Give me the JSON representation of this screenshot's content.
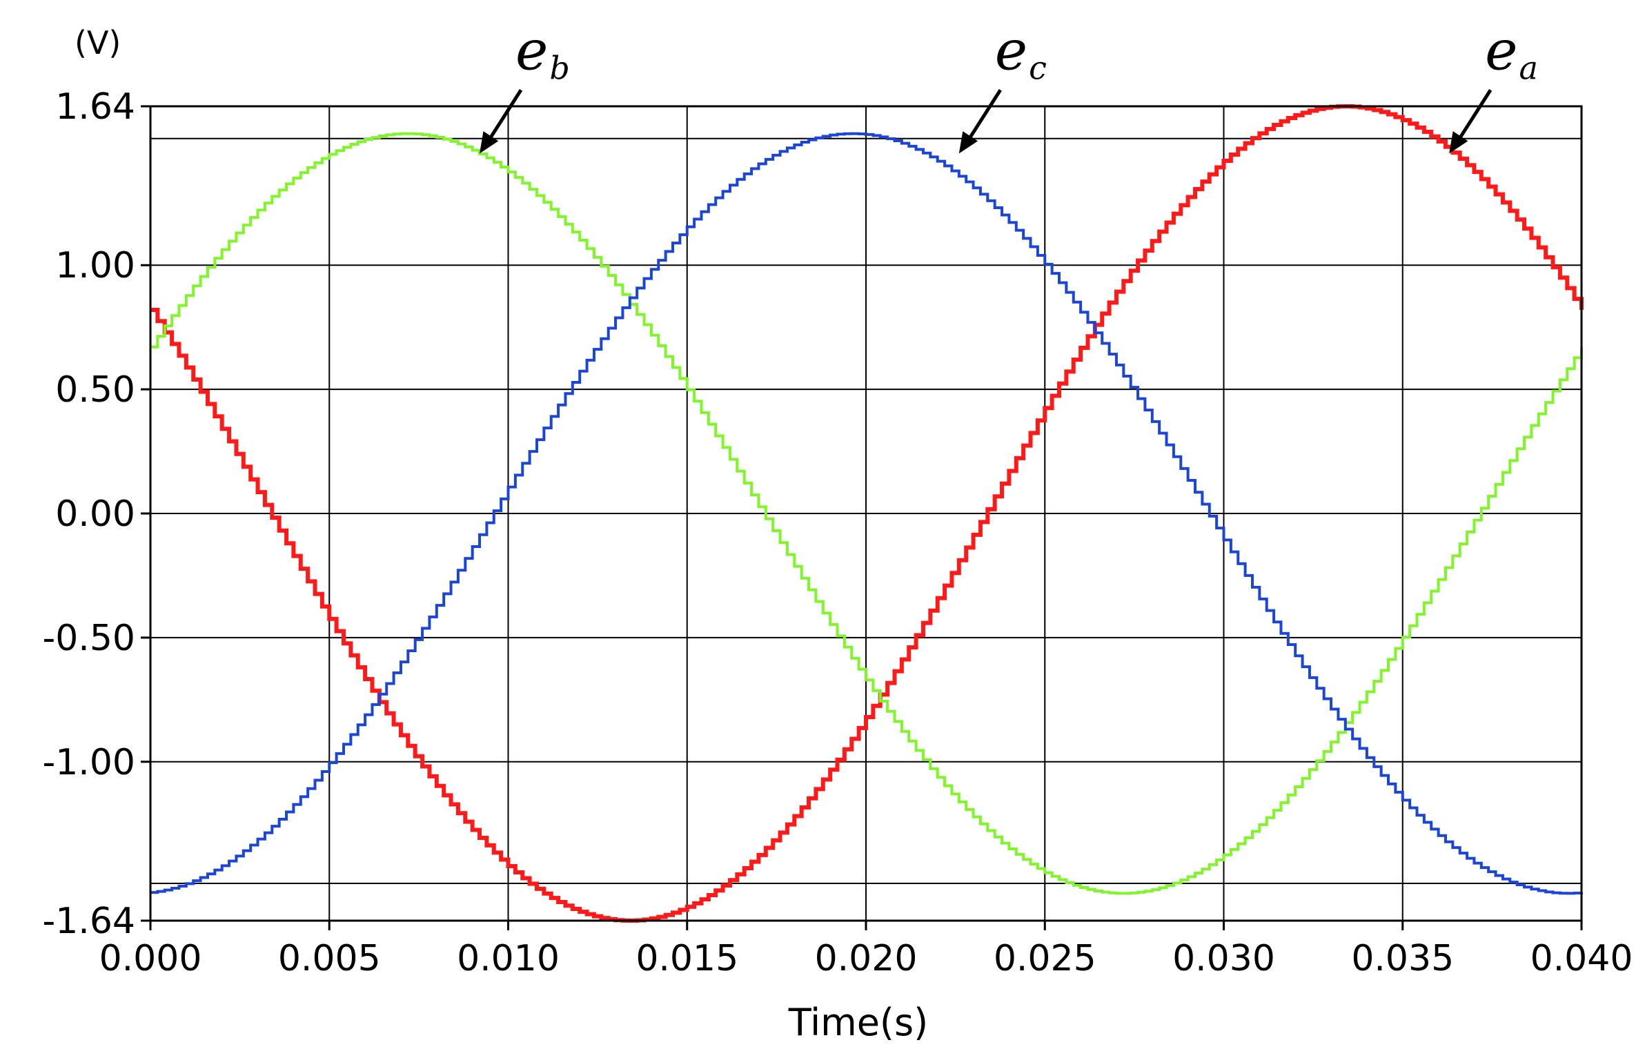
{
  "chart_data": {
    "type": "line",
    "title": "",
    "xlabel": "Time(s)",
    "ylabel_unit": "(V)",
    "xlim": [
      0.0,
      0.04
    ],
    "ylim": [
      -1.64,
      1.64
    ],
    "x_ticks": [
      0.0,
      0.005,
      0.01,
      0.015,
      0.02,
      0.025,
      0.03,
      0.035,
      0.04
    ],
    "x_tick_labels": [
      "0.000",
      "0.005",
      "0.010",
      "0.015",
      "0.020",
      "0.025",
      "0.030",
      "0.035",
      "0.040"
    ],
    "y_ticks": [
      1.64,
      1.0,
      0.5,
      0.0,
      -0.5,
      -1.0,
      -1.64
    ],
    "y_tick_labels": [
      "1.64",
      "1.00",
      "0.50",
      "0.00",
      "-0.50",
      "-1.00",
      "-1.64"
    ],
    "extra_gridlines_y": [
      1.51,
      -1.49
    ],
    "grid": true,
    "waveform": {
      "frequency_hz": 25,
      "sample_step_s": 0.0002,
      "series": [
        {
          "name": "e_a",
          "label_main": "e",
          "label_sub": "a",
          "color": "#ff1a1a",
          "amplitude": 1.64,
          "phase_deg": 150,
          "stroke": 6
        },
        {
          "name": "e_b",
          "label_main": "e",
          "label_sub": "b",
          "color": "#7ff52a",
          "amplitude": 1.53,
          "phase_deg": 26,
          "stroke": 4
        },
        {
          "name": "e_c",
          "label_main": "e",
          "label_sub": "c",
          "color": "#1a45d6",
          "amplitude": 1.53,
          "phase_deg": 274,
          "stroke": 4
        }
      ]
    },
    "annotations": [
      {
        "series": "e_b",
        "point": [
          0.0092,
          1.45
        ]
      },
      {
        "series": "e_c",
        "point": [
          0.0226,
          1.45
        ]
      },
      {
        "series": "e_a",
        "point": [
          0.0363,
          1.45
        ]
      }
    ]
  }
}
